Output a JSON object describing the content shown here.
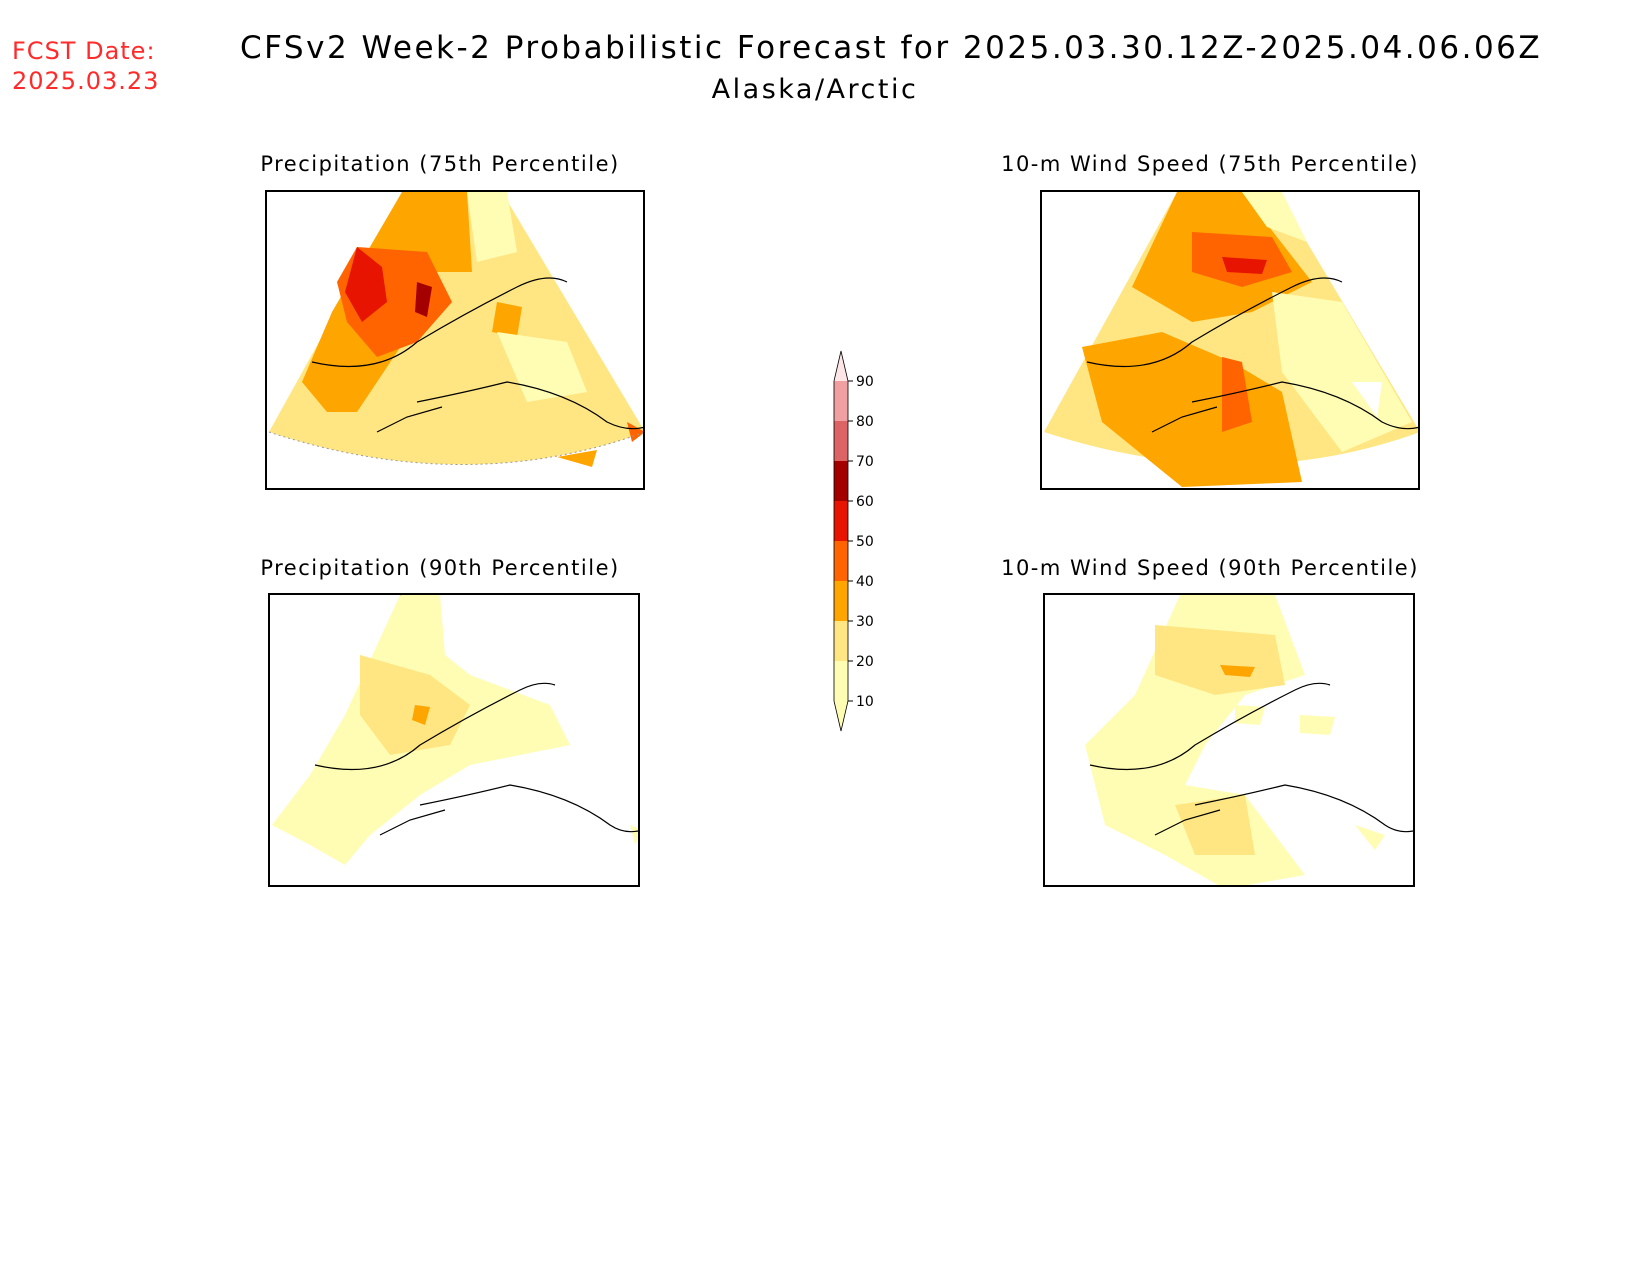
{
  "fcst_label": "FCST Date:",
  "fcst_date": "2025.03.23",
  "title": "CFSv2 Week-2 Probabilistic Forecast for 2025.03.30.12Z-2025.04.06.06Z",
  "subtitle": "Alaska/Arctic",
  "panels": [
    {
      "title": "Precipitation (75th Percentile)"
    },
    {
      "title": "10-m Wind Speed (75th Percentile)"
    },
    {
      "title": "Precipitation (90th Percentile)"
    },
    {
      "title": "10-m Wind Speed (90th Percentile)"
    }
  ],
  "colorbar": {
    "levels": [
      "10",
      "20",
      "30",
      "40",
      "50",
      "60",
      "70",
      "80",
      "90"
    ],
    "colors": [
      "#fffdb4",
      "#ffe682",
      "#ffa500",
      "#ff6400",
      "#e61400",
      "#a50000",
      "#dc6464",
      "#f0a0a0",
      "#ffe6e6"
    ]
  }
}
